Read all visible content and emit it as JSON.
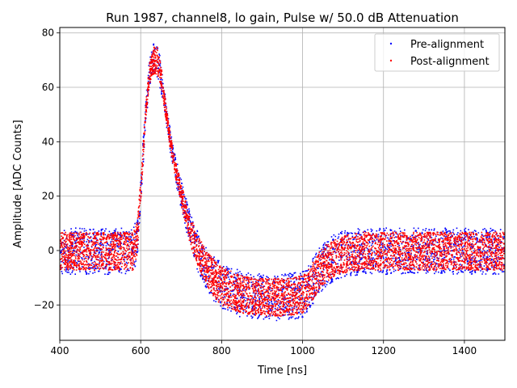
{
  "chart_data": {
    "type": "scatter",
    "title": "Run 1987, channel8, lo gain, Pulse w/ 50.0 dB Attenuation",
    "xlabel": "Time [ns]",
    "ylabel": "Amplitude [ADC Counts]",
    "xlim": [
      400,
      1500
    ],
    "ylim": [
      -33,
      82
    ],
    "xticks": [
      400,
      600,
      800,
      1000,
      1200,
      1400
    ],
    "yticks": [
      -20,
      0,
      20,
      40,
      60,
      80
    ],
    "xtick_labels": [
      "400",
      "600",
      "800",
      "1000",
      "1200",
      "1400"
    ],
    "ytick_labels": [
      "−20",
      "0",
      "20",
      "40",
      "60",
      "80"
    ],
    "grid": true,
    "legend_position": "top-right",
    "series": [
      {
        "name": "Pre-alignment",
        "color": "#0000ff",
        "marker": "point"
      },
      {
        "name": "Post-alignment",
        "color": "#ff0000",
        "marker": "point"
      }
    ],
    "envelope": {
      "x": [
        400,
        580,
        590,
        600,
        610,
        620,
        630,
        640,
        650,
        660,
        670,
        680,
        700,
        720,
        740,
        760,
        780,
        800,
        850,
        900,
        950,
        1000,
        1020,
        1040,
        1060,
        1080,
        1100,
        1150,
        1200,
        1300,
        1400,
        1500
      ],
      "center": [
        0,
        0,
        5,
        25,
        50,
        65,
        70,
        70,
        63,
        52,
        42,
        33,
        20,
        8,
        0,
        -6,
        -10,
        -13,
        -16,
        -17,
        -17,
        -16,
        -12,
        -7,
        -4,
        -2,
        -1,
        0,
        0,
        0,
        0,
        0
      ],
      "spread": [
        7,
        7,
        6,
        4,
        3,
        4,
        5,
        5,
        4,
        3,
        3,
        3,
        4,
        5,
        6,
        6,
        7,
        7,
        7,
        7,
        7,
        7,
        7,
        7,
        7,
        7,
        7,
        7,
        7,
        7,
        7,
        7
      ]
    }
  }
}
